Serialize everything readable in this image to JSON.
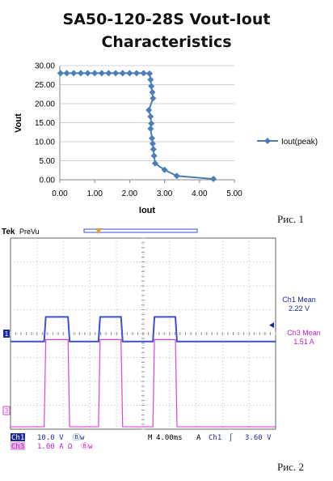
{
  "chart_data": [
    {
      "type": "scatter",
      "title": "SA50-120-28S Vout-Iout Characteristics",
      "title_lines": [
        "SA50-120-28S Vout-Iout",
        "Characteristics"
      ],
      "xlabel": "Iout",
      "ylabel": "Vout",
      "xlim": [
        0,
        5
      ],
      "ylim": [
        0,
        30
      ],
      "xticks": [
        "0.00",
        "1.00",
        "2.00",
        "3.00",
        "4.00",
        "5.00"
      ],
      "yticks": [
        "0.00",
        "5.00",
        "10.00",
        "15.00",
        "20.00",
        "25.00",
        "30.00"
      ],
      "grid": true,
      "legend_position": "right",
      "series": [
        {
          "name": "Iout(peak)",
          "color": "#4a7ebb",
          "marker": "diamond",
          "line": true,
          "points": [
            [
              0.02,
              28.0
            ],
            [
              0.2,
              28.0
            ],
            [
              0.4,
              28.0
            ],
            [
              0.6,
              28.0
            ],
            [
              0.8,
              28.0
            ],
            [
              1.0,
              28.0
            ],
            [
              1.2,
              28.0
            ],
            [
              1.4,
              28.0
            ],
            [
              1.6,
              28.0
            ],
            [
              1.8,
              28.0
            ],
            [
              2.0,
              28.0
            ],
            [
              2.2,
              28.0
            ],
            [
              2.4,
              28.0
            ],
            [
              2.57,
              27.9
            ],
            [
              2.6,
              26.3
            ],
            [
              2.62,
              24.6
            ],
            [
              2.65,
              23.0
            ],
            [
              2.67,
              21.4
            ],
            [
              2.55,
              18.3
            ],
            [
              2.6,
              16.6
            ],
            [
              2.62,
              14.8
            ],
            [
              2.6,
              13.4
            ],
            [
              2.64,
              10.9
            ],
            [
              2.66,
              9.5
            ],
            [
              2.68,
              8.0
            ],
            [
              2.7,
              6.3
            ],
            [
              2.73,
              4.3
            ],
            [
              3.0,
              2.6
            ],
            [
              3.35,
              1.0
            ],
            [
              4.4,
              0.2
            ]
          ]
        }
      ]
    },
    {
      "type": "line",
      "title": "",
      "header": {
        "brand": "Tek",
        "mode": "PreVu",
        "trigger_marker": "T"
      },
      "time_per_div_ms": 4.0,
      "series": [
        {
          "name": "Ch1",
          "color": "#3c50d2",
          "label": "Ch1 Mean",
          "value": "2.22 V",
          "marker": "1",
          "low_level_div": 3.67,
          "high_level_div": 4.7,
          "pulses_div": [
            [
              1.3,
              2.2
            ],
            [
              3.35,
              4.2
            ],
            [
              5.4,
              6.25
            ]
          ]
        },
        {
          "name": "Ch3",
          "color": "#e040e0",
          "label": "Ch3 Mean",
          "value": "1.51 A",
          "marker": "3",
          "low_level_div": 0.1,
          "high_level_div": 3.75,
          "pulses_div": [
            [
              1.3,
              2.2
            ],
            [
              3.35,
              4.2
            ],
            [
              5.4,
              6.25
            ]
          ]
        }
      ],
      "footer": {
        "ch1_name": "Ch1",
        "ch1_scale": "10.0 V",
        "ch1_bw": "Ⓑw",
        "ch3_name": "Ch3",
        "ch3_scale": "1.00 A Ω",
        "ch3_bw": "Ⓑw",
        "timebase_label": "M",
        "timebase": "4.00ms",
        "trigger_mode": "A",
        "trigger_channel": "Ch1",
        "trigger_slope": "∫",
        "trigger_level": "3.60 V"
      }
    }
  ],
  "captions": {
    "figure1": "Рис. 1",
    "figure2": "Рис. 2"
  }
}
